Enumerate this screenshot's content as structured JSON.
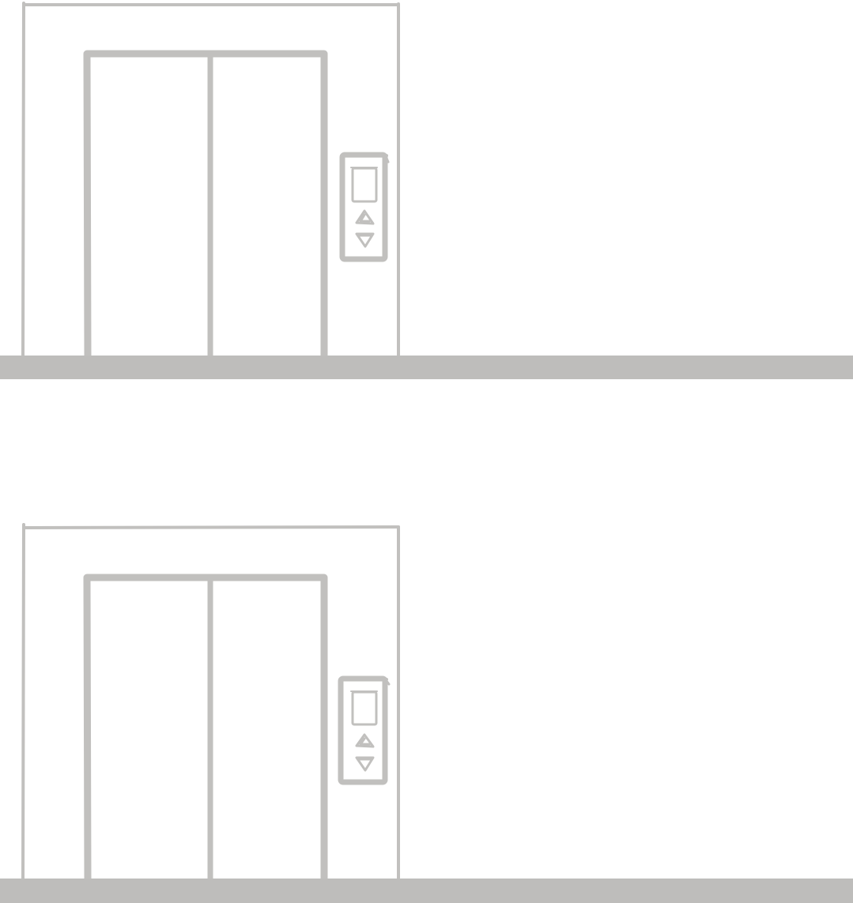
{
  "palette": {
    "line": "#c1c0be",
    "floor": "#bebdbb",
    "background": "#ffffff"
  },
  "floors": [
    {
      "name": "upper-floor",
      "elevator": {
        "doors": [
          "left-door",
          "right-door"
        ],
        "call_panel": {
          "display": "floor-indicator-display",
          "buttons": [
            "up-arrow-icon",
            "down-arrow-icon"
          ]
        }
      }
    },
    {
      "name": "lower-floor",
      "elevator": {
        "doors": [
          "left-door",
          "right-door"
        ],
        "call_panel": {
          "display": "floor-indicator-display",
          "buttons": [
            "up-arrow-icon",
            "down-arrow-icon"
          ]
        }
      }
    }
  ]
}
